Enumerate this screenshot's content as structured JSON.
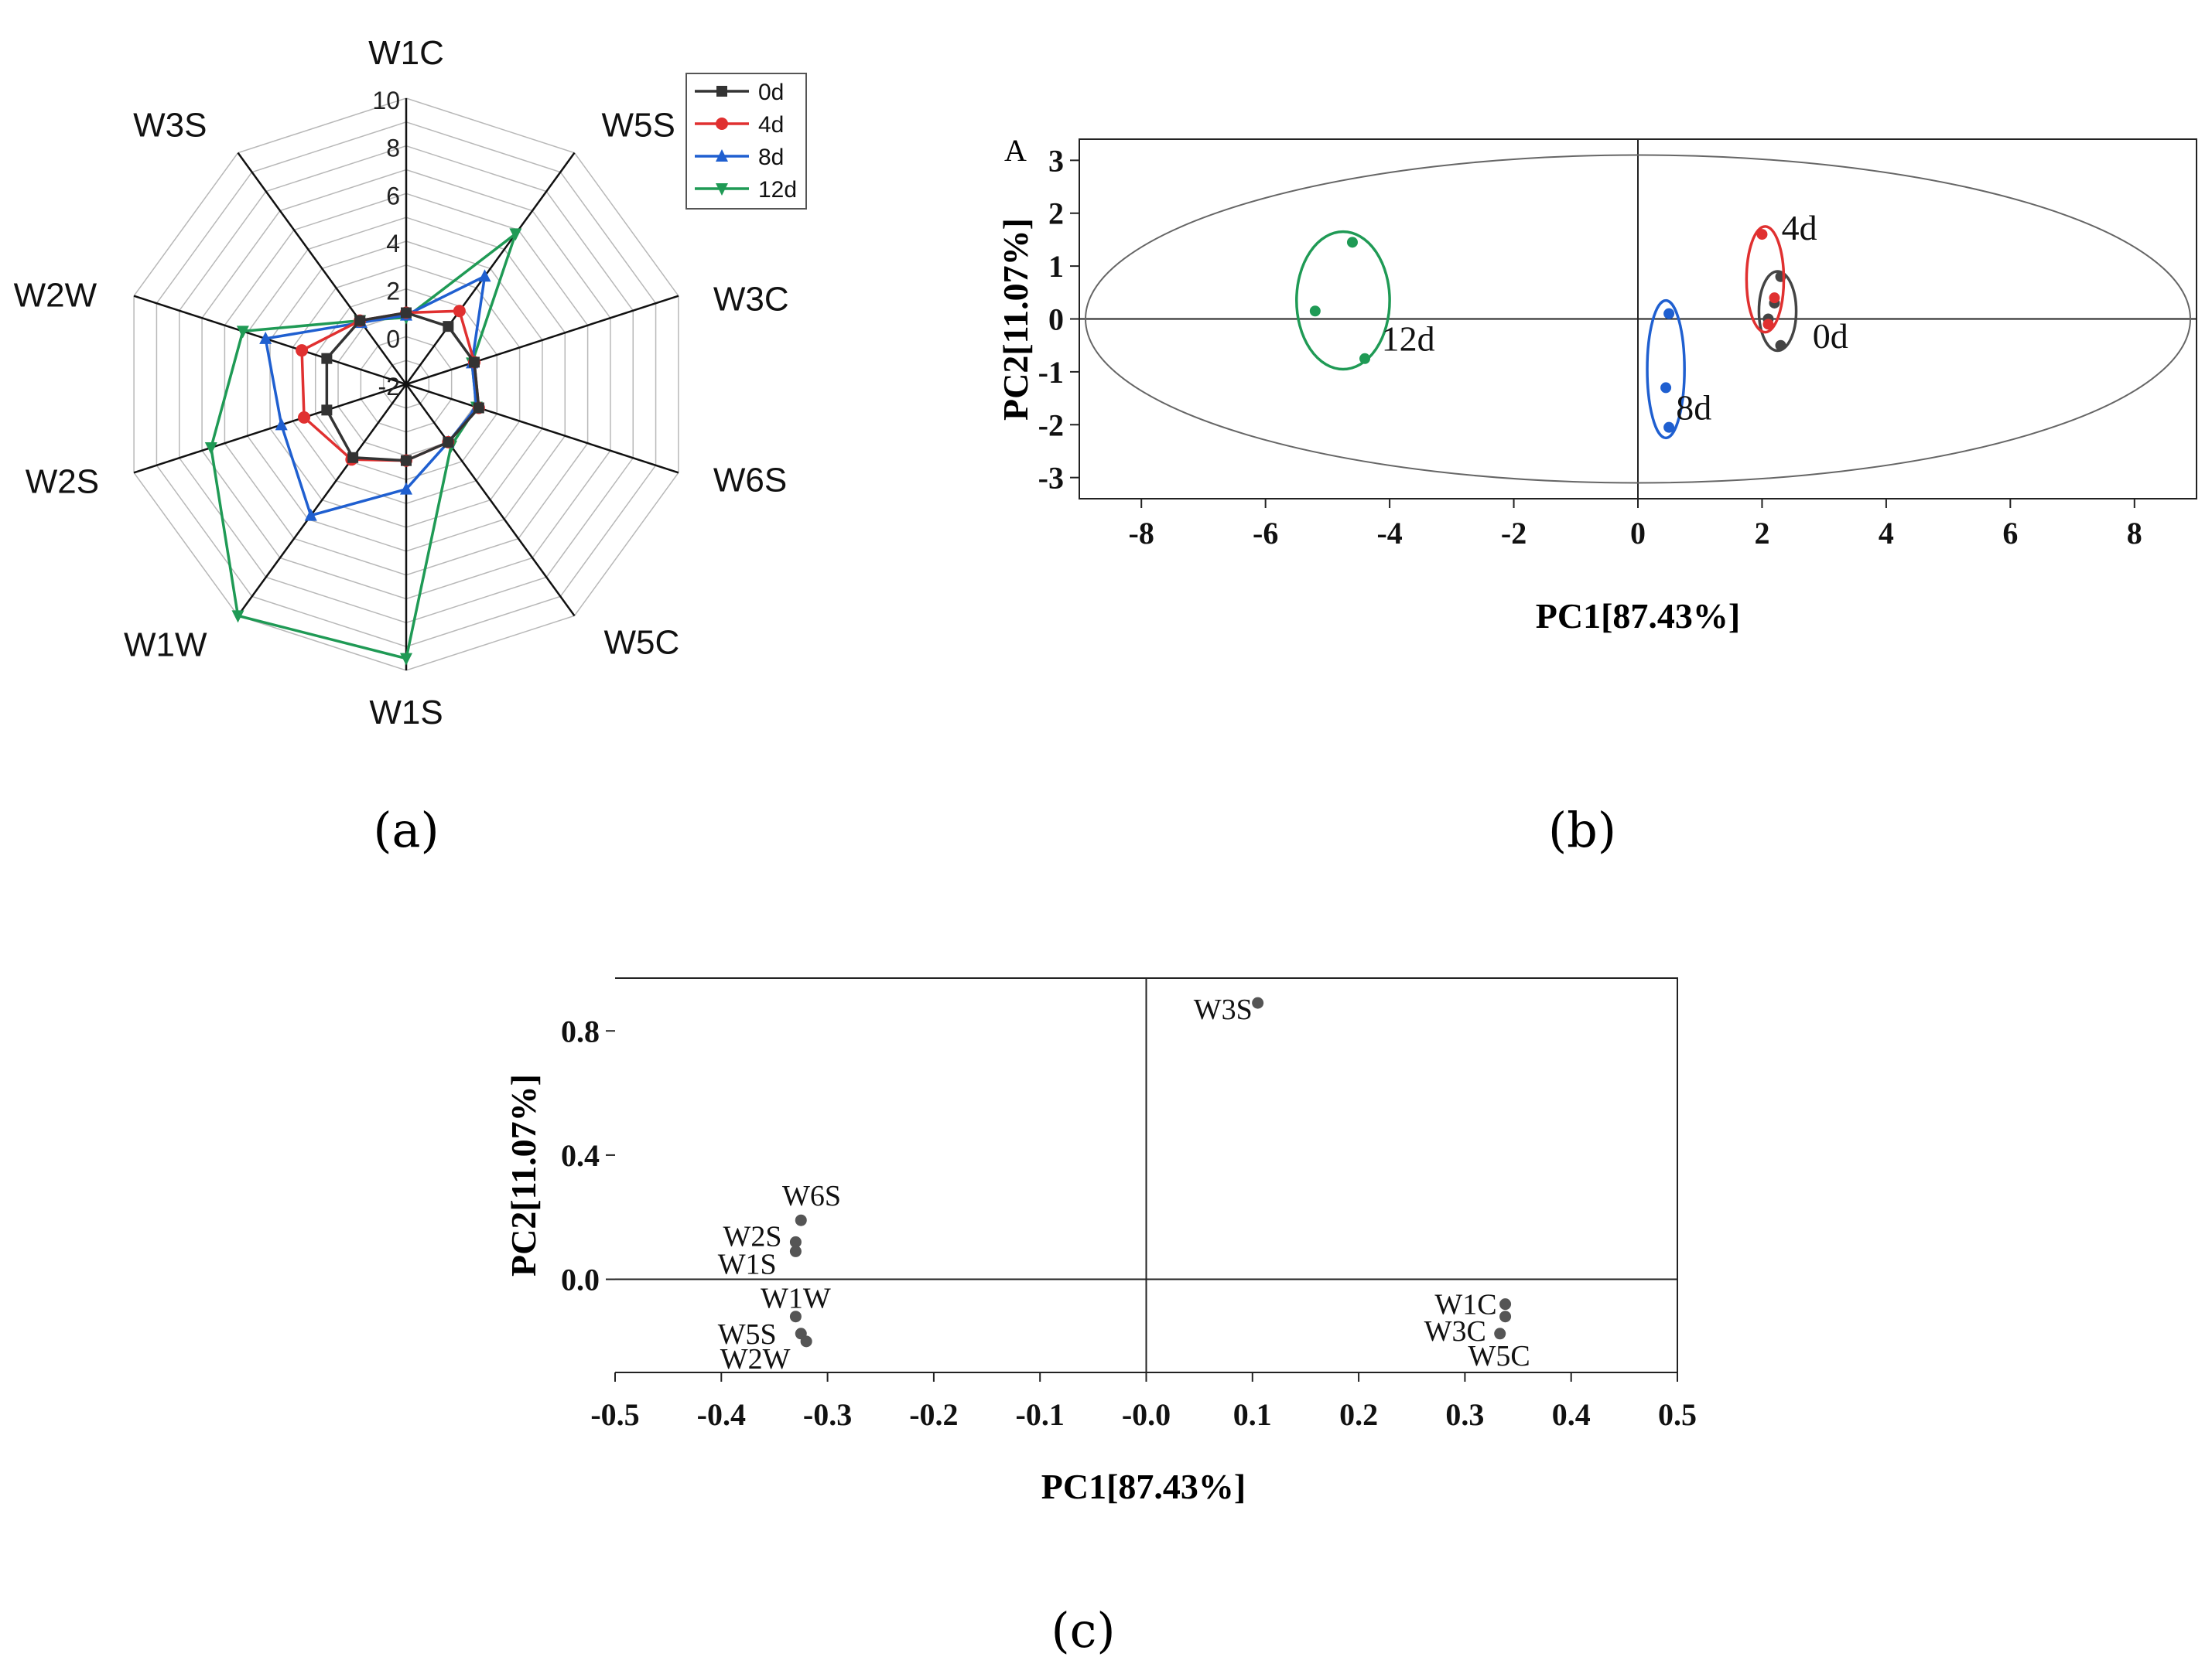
{
  "chart_data": [
    {
      "panel": "a",
      "type": "radar",
      "caption": "(a)",
      "axes": [
        "W1C",
        "W5S",
        "W3C",
        "W6S",
        "W5C",
        "W1S",
        "W1W",
        "W2S",
        "W2W",
        "W3S"
      ],
      "rlim": [
        -2,
        10
      ],
      "ticks": [
        "-2",
        "0",
        "2",
        "4",
        "6",
        "8",
        "10"
      ],
      "tick_values": [
        -2,
        0,
        2,
        4,
        6,
        8,
        10
      ],
      "legend_position": "top-right",
      "series": [
        {
          "name": "0d",
          "color": "#333333",
          "marker": "square",
          "values": [
            1.0,
            1.0,
            1.0,
            1.2,
            1.0,
            1.2,
            1.8,
            1.5,
            1.5,
            1.3
          ]
        },
        {
          "name": "4d",
          "color": "#e03030",
          "marker": "circle",
          "values": [
            1.0,
            1.8,
            1.0,
            1.2,
            1.0,
            1.2,
            1.9,
            2.5,
            2.6,
            1.3
          ]
        },
        {
          "name": "8d",
          "color": "#1f5fd0",
          "marker": "triangle-up",
          "values": [
            0.9,
            3.6,
            0.9,
            1.1,
            1.0,
            2.4,
            4.8,
            3.5,
            4.2,
            1.2
          ]
        },
        {
          "name": "12d",
          "color": "#1f9a55",
          "marker": "triangle-down",
          "values": [
            0.8,
            5.8,
            0.9,
            1.1,
            1.2,
            9.5,
            10.0,
            6.6,
            5.2,
            1.3
          ]
        }
      ]
    },
    {
      "panel": "b",
      "type": "scatter",
      "caption": "(b)",
      "label": "A",
      "xlabel": "PC1[87.43%]",
      "ylabel": "PC2[11.07%]",
      "xlim": [
        -9,
        9
      ],
      "ylim": [
        -3.4,
        3.4
      ],
      "xticks": [
        -8,
        -6,
        -4,
        -2,
        0,
        2,
        4,
        6,
        8
      ],
      "yticks": [
        -3,
        -2,
        -1,
        0,
        1,
        2,
        3
      ],
      "confidence_ellipse": {
        "cx": 0,
        "cy": 0,
        "rx": 8.9,
        "ry": 3.1,
        "color": "#666666"
      },
      "series": [
        {
          "name": "0d",
          "color": "#444444",
          "points": [
            [
              2.3,
              0.8
            ],
            [
              2.2,
              0.3
            ],
            [
              2.1,
              0.0
            ],
            [
              2.3,
              -0.5
            ]
          ],
          "ellipse": {
            "cx": 2.25,
            "cy": 0.15,
            "rx": 0.3,
            "ry": 0.75
          }
        },
        {
          "name": "4d",
          "color": "#e03030",
          "points": [
            [
              2.0,
              1.6
            ],
            [
              2.2,
              0.4
            ],
            [
              2.1,
              -0.1
            ]
          ],
          "ellipse": {
            "cx": 2.05,
            "cy": 0.75,
            "rx": 0.3,
            "ry": 1.0
          }
        },
        {
          "name": "8d",
          "color": "#1f5fd0",
          "points": [
            [
              0.5,
              0.1
            ],
            [
              0.45,
              -1.3
            ],
            [
              0.5,
              -2.05
            ]
          ],
          "ellipse": {
            "cx": 0.45,
            "cy": -0.95,
            "rx": 0.3,
            "ry": 1.3
          }
        },
        {
          "name": "12d",
          "color": "#1f9a55",
          "points": [
            [
              -4.6,
              1.45
            ],
            [
              -5.2,
              0.15
            ],
            [
              -4.4,
              -0.75
            ]
          ],
          "ellipse": {
            "cx": -4.75,
            "cy": 0.35,
            "rx": 0.75,
            "ry": 1.3
          }
        }
      ],
      "annotations": [
        {
          "text": "4d",
          "x": 2.6,
          "y": 1.5
        },
        {
          "text": "0d",
          "x": 3.1,
          "y": -0.55
        },
        {
          "text": "8d",
          "x": 0.9,
          "y": -1.9
        },
        {
          "text": "12d",
          "x": -3.7,
          "y": -0.6
        }
      ]
    },
    {
      "panel": "c",
      "type": "scatter",
      "caption": "(c)",
      "xlabel": "PC1[87.43%]",
      "ylabel": "PC2[11.07%]",
      "xlim": [
        -0.5,
        0.5
      ],
      "ylim": [
        -0.3,
        0.97
      ],
      "xticks": [
        "-0.5",
        "-0.4",
        "-0.3",
        "-0.2",
        "-0.1",
        "-0.0",
        "0.1",
        "0.2",
        "0.3",
        "0.4",
        "0.5"
      ],
      "xtick_values": [
        -0.5,
        -0.4,
        -0.3,
        -0.2,
        -0.1,
        0.0,
        0.1,
        0.2,
        0.3,
        0.4,
        0.5
      ],
      "yticks": [
        "0.0",
        "0.4",
        "0.8"
      ],
      "ytick_values": [
        0.0,
        0.4,
        0.8
      ],
      "color": "#555555",
      "points": [
        {
          "label": "W3S",
          "x": 0.105,
          "y": 0.89,
          "anchor": "end",
          "dx": -0.005,
          "dy": -0.02
        },
        {
          "label": "W6S",
          "x": -0.325,
          "y": 0.19,
          "anchor": "middle",
          "dx": 0.01,
          "dy": 0.08
        },
        {
          "label": "W2S",
          "x": -0.33,
          "y": 0.12,
          "anchor": "end",
          "dx": -0.013,
          "dy": 0.02
        },
        {
          "label": "W1S",
          "x": -0.33,
          "y": 0.09,
          "anchor": "end",
          "dx": -0.018,
          "dy": -0.04
        },
        {
          "label": "W1W",
          "x": -0.33,
          "y": -0.12,
          "anchor": "middle",
          "dx": 0.0,
          "dy": 0.06
        },
        {
          "label": "W5S",
          "x": -0.325,
          "y": -0.175,
          "anchor": "end",
          "dx": -0.023,
          "dy": -0.0
        },
        {
          "label": "W2W",
          "x": -0.32,
          "y": -0.2,
          "anchor": "end",
          "dx": -0.015,
          "dy": -0.055
        },
        {
          "label": "W1C",
          "x": 0.338,
          "y": -0.08,
          "anchor": "end",
          "dx": -0.008,
          "dy": -0.0
        },
        {
          "label": "W3C",
          "x": 0.338,
          "y": -0.12,
          "anchor": "end",
          "dx": -0.018,
          "dy": -0.045
        },
        {
          "label": "W5C",
          "x": 0.333,
          "y": -0.175,
          "anchor": "start",
          "dx": -0.03,
          "dy": -0.07
        }
      ]
    }
  ]
}
